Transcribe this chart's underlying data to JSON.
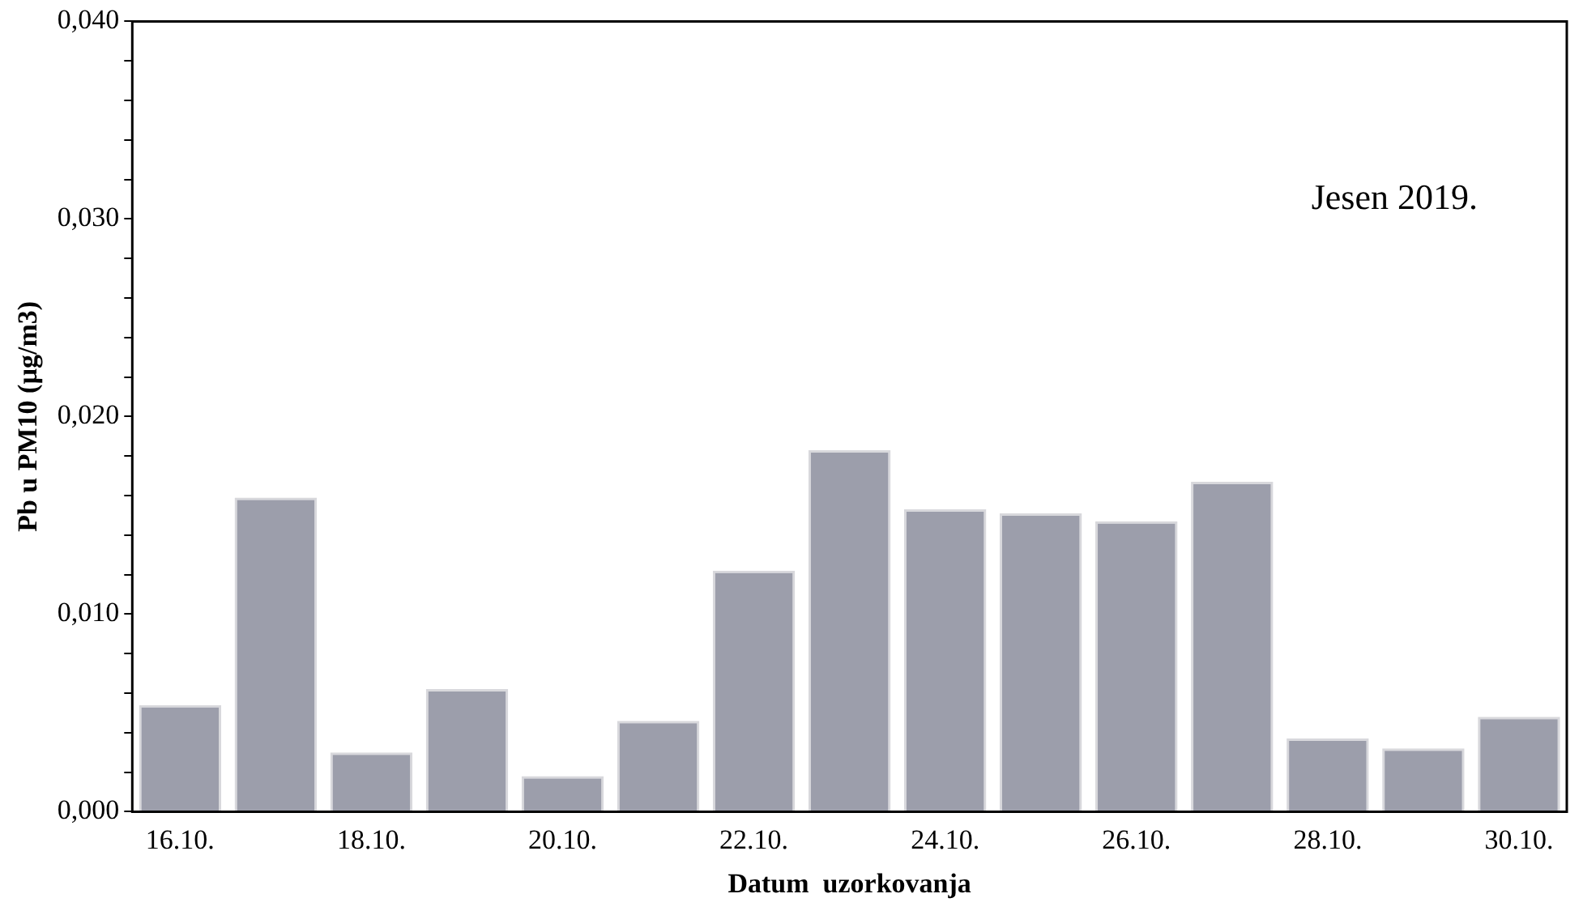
{
  "chart_data": {
    "type": "bar",
    "xlabel": "Datum  uzorkovanja",
    "ylabel": "Pb u PM10 (µg/m3)",
    "categories": [
      "16.10.",
      null,
      "18.10.",
      null,
      "20.10.",
      null,
      "22.10.",
      null,
      "24.10.",
      null,
      "26.10.",
      null,
      "28.10.",
      null,
      "30.10."
    ],
    "values": [
      0.0054,
      0.0159,
      0.003,
      0.0062,
      0.0018,
      0.0046,
      0.0122,
      0.0183,
      0.0153,
      0.0151,
      0.0147,
      0.0167,
      0.0037,
      0.0032,
      0.0048
    ],
    "color": "#9c9eab",
    "ylim": [
      0,
      0.04
    ],
    "yticks": [
      {
        "value": 0,
        "label": "0,000"
      },
      {
        "value": 0.002,
        "label": null
      },
      {
        "value": 0.004,
        "label": null
      },
      {
        "value": 0.006,
        "label": null
      },
      {
        "value": 0.008,
        "label": null
      },
      {
        "value": 0.01,
        "label": "0,010"
      },
      {
        "value": 0.012,
        "label": null
      },
      {
        "value": 0.014,
        "label": null
      },
      {
        "value": 0.016,
        "label": null
      },
      {
        "value": 0.018,
        "label": null
      },
      {
        "value": 0.02,
        "label": "0,020"
      },
      {
        "value": 0.022,
        "label": null
      },
      {
        "value": 0.024,
        "label": null
      },
      {
        "value": 0.026,
        "label": null
      },
      {
        "value": 0.028,
        "label": null
      },
      {
        "value": 0.03,
        "label": "0,030"
      },
      {
        "value": 0.032,
        "label": null
      },
      {
        "value": 0.034,
        "label": null
      },
      {
        "value": 0.036,
        "label": null
      },
      {
        "value": 0.038,
        "label": null
      },
      {
        "value": 0.04,
        "label": "0,040"
      }
    ],
    "annotations": [
      "Jesen 2019."
    ],
    "grid": false,
    "legend": false
  }
}
